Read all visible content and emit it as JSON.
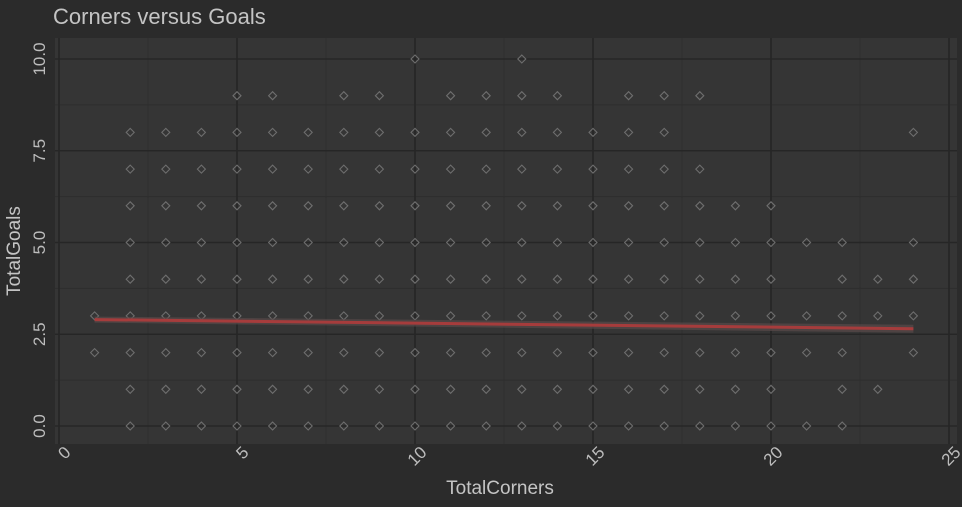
{
  "chart_data": {
    "type": "scatter",
    "title": "Corners versus Goals",
    "xlabel": "TotalCorners",
    "ylabel": "TotalGoals",
    "xlim": [
      0,
      25
    ],
    "ylim": [
      0,
      10.5
    ],
    "xticks": [
      0,
      5,
      10,
      15,
      20,
      25
    ],
    "xtick_labels": [
      "0",
      "5",
      "10",
      "15",
      "20",
      "25"
    ],
    "yticks": [
      0,
      2.5,
      5,
      7.5,
      10
    ],
    "ytick_labels": [
      "0.0",
      "2.5",
      "5.0",
      "7.5",
      "10.0"
    ],
    "grid": true,
    "point_style": "open-diamond",
    "points": [
      [
        1,
        3
      ],
      [
        1,
        2
      ],
      [
        2,
        0
      ],
      [
        2,
        1
      ],
      [
        2,
        2
      ],
      [
        2,
        3
      ],
      [
        2,
        4
      ],
      [
        2,
        5
      ],
      [
        2,
        6
      ],
      [
        2,
        7
      ],
      [
        2,
        8
      ],
      [
        3,
        0
      ],
      [
        3,
        1
      ],
      [
        3,
        2
      ],
      [
        3,
        3
      ],
      [
        3,
        4
      ],
      [
        3,
        5
      ],
      [
        3,
        6
      ],
      [
        3,
        7
      ],
      [
        3,
        8
      ],
      [
        4,
        0
      ],
      [
        4,
        1
      ],
      [
        4,
        2
      ],
      [
        4,
        3
      ],
      [
        4,
        4
      ],
      [
        4,
        5
      ],
      [
        4,
        6
      ],
      [
        4,
        7
      ],
      [
        4,
        8
      ],
      [
        5,
        0
      ],
      [
        5,
        1
      ],
      [
        5,
        2
      ],
      [
        5,
        3
      ],
      [
        5,
        4
      ],
      [
        5,
        5
      ],
      [
        5,
        6
      ],
      [
        5,
        7
      ],
      [
        5,
        8
      ],
      [
        5,
        9
      ],
      [
        6,
        0
      ],
      [
        6,
        1
      ],
      [
        6,
        2
      ],
      [
        6,
        3
      ],
      [
        6,
        4
      ],
      [
        6,
        5
      ],
      [
        6,
        6
      ],
      [
        6,
        7
      ],
      [
        6,
        8
      ],
      [
        6,
        9
      ],
      [
        7,
        0
      ],
      [
        7,
        1
      ],
      [
        7,
        2
      ],
      [
        7,
        3
      ],
      [
        7,
        4
      ],
      [
        7,
        5
      ],
      [
        7,
        6
      ],
      [
        7,
        7
      ],
      [
        7,
        8
      ],
      [
        8,
        0
      ],
      [
        8,
        1
      ],
      [
        8,
        2
      ],
      [
        8,
        3
      ],
      [
        8,
        4
      ],
      [
        8,
        5
      ],
      [
        8,
        6
      ],
      [
        8,
        7
      ],
      [
        8,
        8
      ],
      [
        8,
        9
      ],
      [
        9,
        0
      ],
      [
        9,
        1
      ],
      [
        9,
        2
      ],
      [
        9,
        3
      ],
      [
        9,
        4
      ],
      [
        9,
        5
      ],
      [
        9,
        6
      ],
      [
        9,
        7
      ],
      [
        9,
        8
      ],
      [
        9,
        9
      ],
      [
        10,
        0
      ],
      [
        10,
        1
      ],
      [
        10,
        2
      ],
      [
        10,
        3
      ],
      [
        10,
        4
      ],
      [
        10,
        5
      ],
      [
        10,
        6
      ],
      [
        10,
        7
      ],
      [
        10,
        8
      ],
      [
        10,
        10
      ],
      [
        11,
        0
      ],
      [
        11,
        1
      ],
      [
        11,
        2
      ],
      [
        11,
        3
      ],
      [
        11,
        4
      ],
      [
        11,
        5
      ],
      [
        11,
        6
      ],
      [
        11,
        7
      ],
      [
        11,
        8
      ],
      [
        11,
        9
      ],
      [
        12,
        0
      ],
      [
        12,
        1
      ],
      [
        12,
        2
      ],
      [
        12,
        3
      ],
      [
        12,
        4
      ],
      [
        12,
        5
      ],
      [
        12,
        6
      ],
      [
        12,
        7
      ],
      [
        12,
        8
      ],
      [
        12,
        9
      ],
      [
        13,
        0
      ],
      [
        13,
        1
      ],
      [
        13,
        2
      ],
      [
        13,
        3
      ],
      [
        13,
        4
      ],
      [
        13,
        5
      ],
      [
        13,
        6
      ],
      [
        13,
        7
      ],
      [
        13,
        8
      ],
      [
        13,
        9
      ],
      [
        13,
        10
      ],
      [
        14,
        0
      ],
      [
        14,
        1
      ],
      [
        14,
        2
      ],
      [
        14,
        3
      ],
      [
        14,
        4
      ],
      [
        14,
        5
      ],
      [
        14,
        6
      ],
      [
        14,
        7
      ],
      [
        14,
        8
      ],
      [
        14,
        9
      ],
      [
        15,
        0
      ],
      [
        15,
        1
      ],
      [
        15,
        2
      ],
      [
        15,
        3
      ],
      [
        15,
        4
      ],
      [
        15,
        5
      ],
      [
        15,
        6
      ],
      [
        15,
        7
      ],
      [
        15,
        8
      ],
      [
        16,
        0
      ],
      [
        16,
        1
      ],
      [
        16,
        2
      ],
      [
        16,
        3
      ],
      [
        16,
        4
      ],
      [
        16,
        5
      ],
      [
        16,
        6
      ],
      [
        16,
        7
      ],
      [
        16,
        8
      ],
      [
        16,
        9
      ],
      [
        17,
        0
      ],
      [
        17,
        1
      ],
      [
        17,
        2
      ],
      [
        17,
        3
      ],
      [
        17,
        4
      ],
      [
        17,
        5
      ],
      [
        17,
        6
      ],
      [
        17,
        7
      ],
      [
        17,
        8
      ],
      [
        17,
        9
      ],
      [
        18,
        0
      ],
      [
        18,
        1
      ],
      [
        18,
        2
      ],
      [
        18,
        3
      ],
      [
        18,
        4
      ],
      [
        18,
        5
      ],
      [
        18,
        6
      ],
      [
        18,
        7
      ],
      [
        18,
        9
      ],
      [
        19,
        0
      ],
      [
        19,
        1
      ],
      [
        19,
        2
      ],
      [
        19,
        3
      ],
      [
        19,
        4
      ],
      [
        19,
        5
      ],
      [
        19,
        6
      ],
      [
        20,
        0
      ],
      [
        20,
        1
      ],
      [
        20,
        2
      ],
      [
        20,
        3
      ],
      [
        20,
        4
      ],
      [
        20,
        5
      ],
      [
        20,
        6
      ],
      [
        21,
        0
      ],
      [
        21,
        2
      ],
      [
        21,
        3
      ],
      [
        21,
        5
      ],
      [
        22,
        0
      ],
      [
        22,
        1
      ],
      [
        22,
        2
      ],
      [
        22,
        3
      ],
      [
        22,
        4
      ],
      [
        22,
        5
      ],
      [
        23,
        1
      ],
      [
        23,
        3
      ],
      [
        23,
        4
      ],
      [
        24,
        2
      ],
      [
        24,
        3
      ],
      [
        24,
        4
      ],
      [
        24,
        5
      ],
      [
        24,
        8
      ]
    ],
    "trend_line": {
      "x": [
        1,
        24
      ],
      "y": [
        2.9,
        2.65
      ],
      "color": "#a63c3c"
    },
    "colors": {
      "background": "#2b2b2b",
      "panel": "#353535",
      "grid": "#262626",
      "points": "#6e6e6e",
      "text": "#bdbdbd"
    }
  }
}
